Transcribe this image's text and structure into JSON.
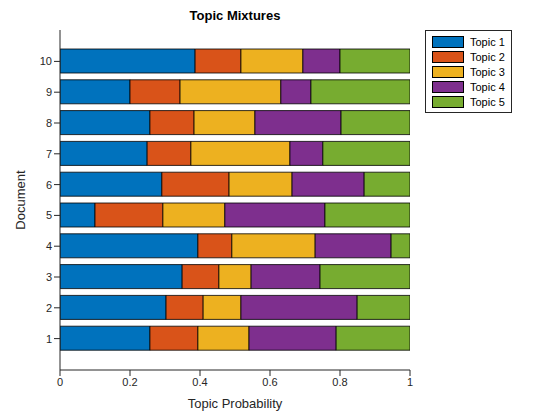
{
  "chart_data": {
    "type": "bar",
    "orientation": "horizontal",
    "stacked": true,
    "title": "Topic Mixtures",
    "x_label": "Topic Probability",
    "y_label": "Document",
    "categories": [
      "1",
      "2",
      "3",
      "4",
      "5",
      "6",
      "7",
      "8",
      "9",
      "10"
    ],
    "series": [
      {
        "name": "Topic 1",
        "color": "#0072BD",
        "values": [
          0.257,
          0.303,
          0.349,
          0.394,
          0.1,
          0.291,
          0.249,
          0.257,
          0.2,
          0.386
        ]
      },
      {
        "name": "Topic 2",
        "color": "#D95319",
        "values": [
          0.137,
          0.106,
          0.105,
          0.097,
          0.194,
          0.192,
          0.125,
          0.126,
          0.143,
          0.131
        ]
      },
      {
        "name": "Topic 3",
        "color": "#EDB120",
        "values": [
          0.146,
          0.108,
          0.092,
          0.238,
          0.177,
          0.18,
          0.283,
          0.174,
          0.288,
          0.177
        ]
      },
      {
        "name": "Topic 4",
        "color": "#7E2F8E",
        "values": [
          0.249,
          0.332,
          0.197,
          0.217,
          0.286,
          0.206,
          0.094,
          0.246,
          0.086,
          0.106
        ]
      },
      {
        "name": "Topic 5",
        "color": "#77AC30",
        "values": [
          0.211,
          0.151,
          0.257,
          0.054,
          0.243,
          0.131,
          0.249,
          0.197,
          0.283,
          0.2
        ]
      }
    ],
    "xlim": [
      0,
      1
    ],
    "xticks": [
      0,
      0.2,
      0.4,
      0.6,
      0.8,
      1
    ],
    "legend": "right"
  }
}
